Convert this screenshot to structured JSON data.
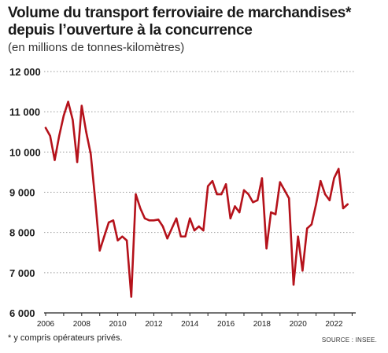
{
  "title_line1": "Volume du transport ferroviaire de marchandises*",
  "title_line2": "depuis l’ouverture à la concurrence",
  "subtitle": "(en millions de tonnes-kilomètres)",
  "footnote": "* y compris opérateurs privés.",
  "source": "SOURCE : INSEE.",
  "colors": {
    "line": "#b5121b",
    "grid": "#9a9a9a",
    "text": "#1a1a1a"
  },
  "chart_data": {
    "type": "line",
    "title": "Volume du transport ferroviaire de marchandises* depuis l’ouverture à la concurrence",
    "subtitle": "(en millions de tonnes-kilomètres)",
    "xlabel": "",
    "ylabel": "",
    "ylim": [
      6000,
      12000
    ],
    "xlim": [
      2006,
      2023.2
    ],
    "yticks": [
      6000,
      7000,
      8000,
      9000,
      10000,
      11000,
      12000
    ],
    "ytick_labels": [
      "6 000",
      "7 000",
      "8 000",
      "9 000",
      "10 000",
      "11 000",
      "12 000"
    ],
    "xticks": [
      2006,
      2008,
      2010,
      2012,
      2014,
      2016,
      2018,
      2020,
      2022
    ],
    "xtick_labels": [
      "2006",
      "2008",
      "2010",
      "2012",
      "2014",
      "2016",
      "2018",
      "2020",
      "2022"
    ],
    "grid": "horizontal dotted",
    "series": [
      {
        "name": "",
        "x": [
          2006.0,
          2006.25,
          2006.5,
          2006.75,
          2007.0,
          2007.25,
          2007.5,
          2007.75,
          2008.0,
          2008.25,
          2008.5,
          2008.75,
          2009.0,
          2009.25,
          2009.5,
          2009.75,
          2010.0,
          2010.25,
          2010.5,
          2010.75,
          2011.0,
          2011.25,
          2011.5,
          2011.75,
          2012.0,
          2012.25,
          2012.5,
          2012.75,
          2013.0,
          2013.25,
          2013.5,
          2013.75,
          2014.0,
          2014.25,
          2014.5,
          2014.75,
          2015.0,
          2015.25,
          2015.5,
          2015.75,
          2016.0,
          2016.25,
          2016.5,
          2016.75,
          2017.0,
          2017.25,
          2017.5,
          2017.75,
          2018.0,
          2018.25,
          2018.5,
          2018.75,
          2019.0,
          2019.25,
          2019.5,
          2019.75,
          2020.0,
          2020.25,
          2020.5,
          2020.75,
          2021.0,
          2021.25,
          2021.5,
          2021.75,
          2022.0,
          2022.25,
          2022.5,
          2022.75
        ],
        "y": [
          10600,
          10400,
          9800,
          10400,
          10900,
          11250,
          10800,
          9750,
          11150,
          10500,
          9950,
          8800,
          7550,
          7900,
          8250,
          8300,
          7800,
          7900,
          7800,
          6400,
          8950,
          8600,
          8350,
          8300,
          8300,
          8320,
          8150,
          7850,
          8100,
          8350,
          7900,
          7900,
          8350,
          8050,
          8150,
          8050,
          9150,
          9280,
          8950,
          8950,
          9200,
          8350,
          8650,
          8500,
          9050,
          8950,
          8750,
          8800,
          9350,
          7600,
          8500,
          8450,
          9250,
          9050,
          8850,
          6700,
          7900,
          7050,
          8100,
          8200,
          8700,
          9280,
          8950,
          8800,
          9350,
          9580,
          8600,
          8700
        ]
      }
    ]
  }
}
